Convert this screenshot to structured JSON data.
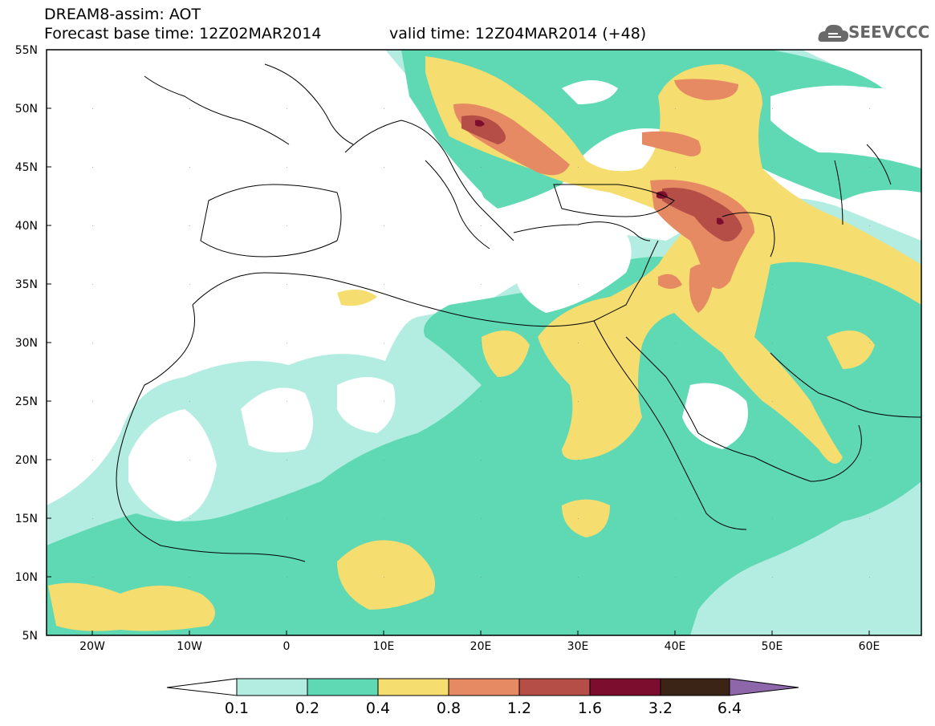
{
  "header": {
    "line1": "DREAM8-assim: AOT",
    "line2": "Forecast base time: 12Z02MAR2014",
    "valid": "valid time: 12Z04MAR2014 (+48)"
  },
  "logo": {
    "text": "SEEVCCC",
    "icon": "cloud-icon"
  },
  "map": {
    "lat_labels": [
      "55N",
      "50N",
      "45N",
      "40N",
      "35N",
      "30N",
      "25N",
      "20N",
      "15N",
      "10N",
      "5N"
    ],
    "lon_labels": [
      "20W",
      "10W",
      "0",
      "10E",
      "20E",
      "30E",
      "40E",
      "50E",
      "60E"
    ]
  },
  "colorbar": {
    "labels": [
      "0.1",
      "0.2",
      "0.4",
      "0.8",
      "1.2",
      "1.6",
      "3.2",
      "6.4"
    ],
    "colors": [
      "#ffffff",
      "#b3ece0",
      "#5ed9b3",
      "#f5dd6f",
      "#e68a63",
      "#b44e47",
      "#7c0d2e",
      "#3b2415",
      "#8e67aa"
    ]
  }
}
